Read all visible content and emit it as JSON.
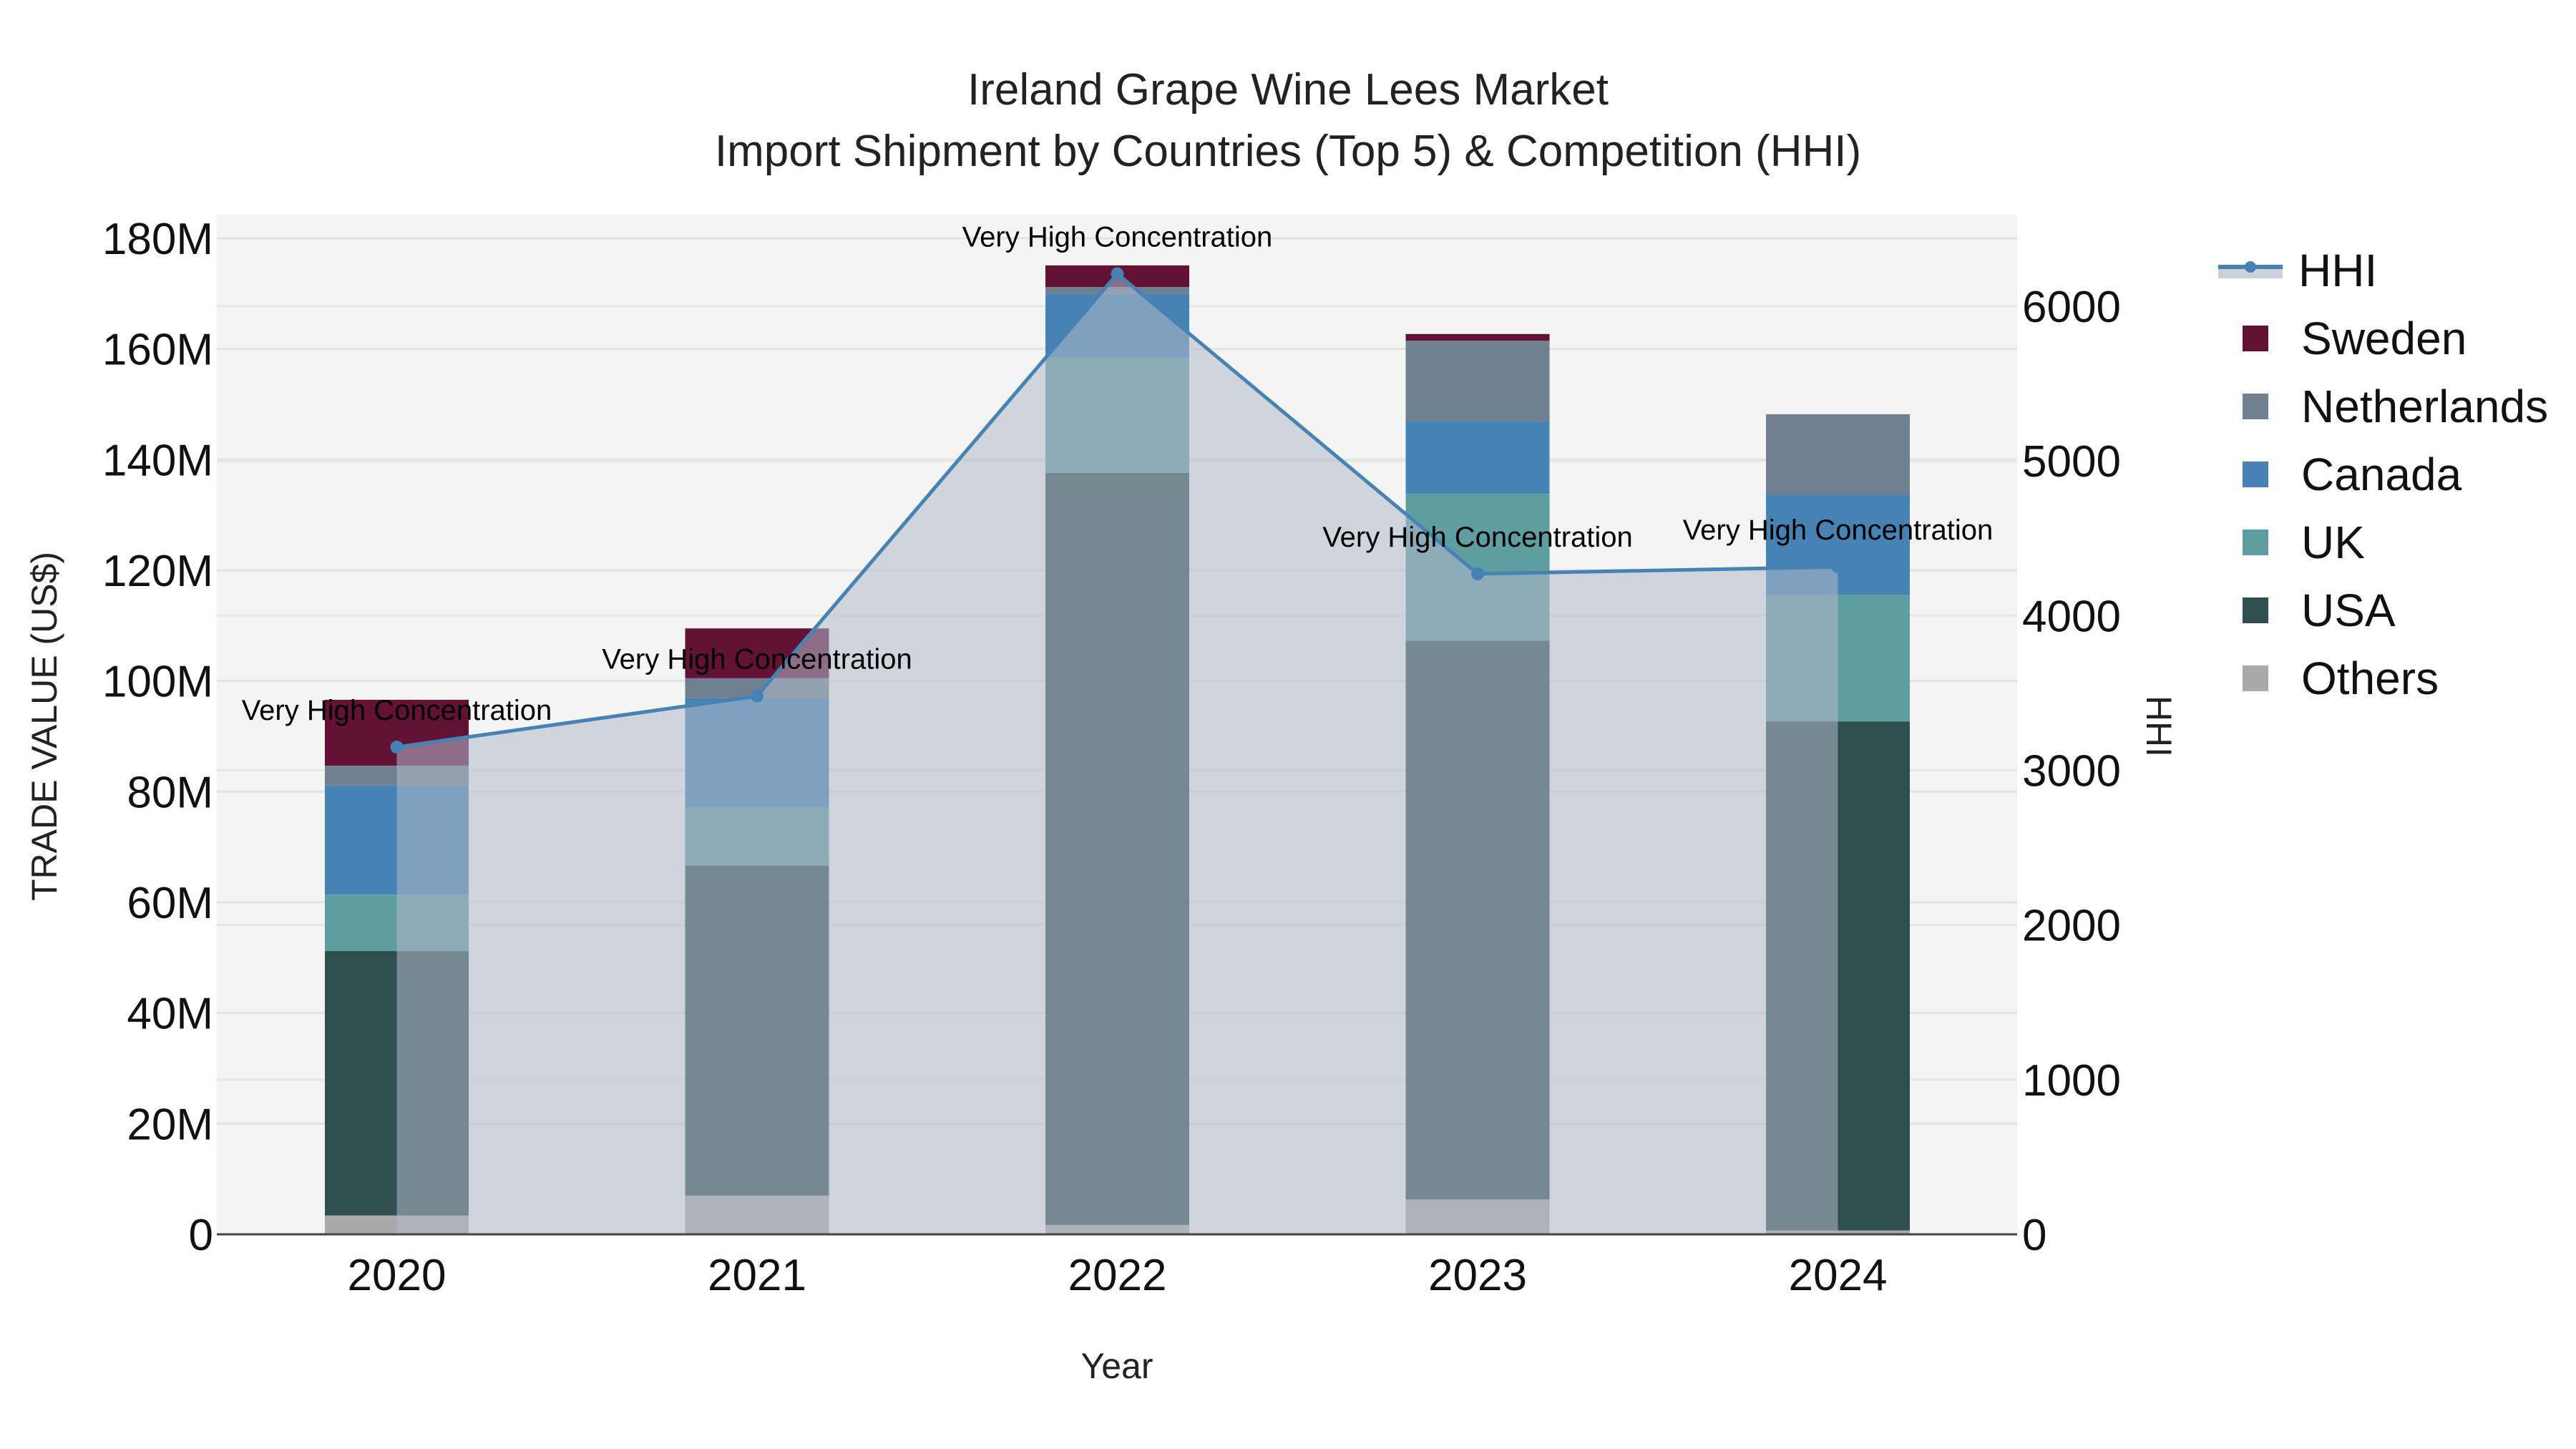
{
  "title": {
    "line1": "Ireland Grape Wine Lees Market",
    "line2": "Import Shipment by Countries (Top 5) & Competition (HHI)"
  },
  "axes": {
    "x_title": "Year",
    "y_left_title": "TRADE VALUE (US$)",
    "y_right_title": "HHI",
    "y_left_ticks": [
      "0",
      "20M",
      "40M",
      "60M",
      "80M",
      "100M",
      "120M",
      "140M",
      "160M",
      "180M"
    ],
    "y_right_ticks": [
      "0",
      "1000",
      "2000",
      "3000",
      "4000",
      "5000",
      "6000"
    ]
  },
  "legend": [
    {
      "name": "HHI",
      "type": "line",
      "color": "#4682b4"
    },
    {
      "name": "Sweden",
      "type": "bar",
      "color": "#631135"
    },
    {
      "name": "Netherlands",
      "type": "bar",
      "color": "#708090"
    },
    {
      "name": "Canada",
      "type": "bar",
      "color": "#4682b4"
    },
    {
      "name": "UK",
      "type": "bar",
      "color": "#5f9ea0"
    },
    {
      "name": "USA",
      "type": "bar",
      "color": "#2f4f4f"
    },
    {
      "name": "Others",
      "type": "bar",
      "color": "#a9a9a9"
    }
  ],
  "chart_data": {
    "type": "bar",
    "stacked": true,
    "title": "Ireland Grape Wine Lees Market — Import Shipment by Countries (Top 5) & Competition (HHI)",
    "xlabel": "Year",
    "ylabel": "TRADE VALUE (US$)",
    "y2label": "HHI",
    "ylim": [
      0,
      184000000
    ],
    "y2lim": [
      0,
      6580
    ],
    "grid": true,
    "legend_position": "right",
    "categories": [
      "2020",
      "2021",
      "2022",
      "2023",
      "2024"
    ],
    "series": [
      {
        "name": "Others",
        "color": "#a9a9a9",
        "values": [
          3400000,
          7000000,
          1700000,
          6300000,
          700000
        ]
      },
      {
        "name": "USA",
        "color": "#2f4f4f",
        "values": [
          47800000,
          59600000,
          135900000,
          101000000,
          92000000
        ]
      },
      {
        "name": "UK",
        "color": "#5f9ea0",
        "values": [
          10200000,
          10600000,
          20800000,
          26500000,
          22900000
        ]
      },
      {
        "name": "Canada",
        "color": "#4682b4",
        "values": [
          19700000,
          19700000,
          11600000,
          13200000,
          18100000
        ]
      },
      {
        "name": "Netherlands",
        "color": "#708090",
        "values": [
          3600000,
          3600000,
          1200000,
          14500000,
          14500000
        ]
      },
      {
        "name": "Sweden",
        "color": "#631135",
        "values": [
          11900000,
          9000000,
          3900000,
          1200000,
          0
        ]
      }
    ],
    "line_series": {
      "name": "HHI",
      "axis": "right",
      "type": "line+area",
      "color": "#4682b4",
      "values": [
        3150,
        3480,
        6210,
        4270,
        4315
      ]
    },
    "annotations": [
      {
        "x": "2020",
        "text": "Very High Concentration"
      },
      {
        "x": "2021",
        "text": "Very High Concentration"
      },
      {
        "x": "2022",
        "text": "Very High Concentration"
      },
      {
        "x": "2023",
        "text": "Very High Concentration"
      },
      {
        "x": "2024",
        "text": "Very High Concentration"
      }
    ]
  }
}
